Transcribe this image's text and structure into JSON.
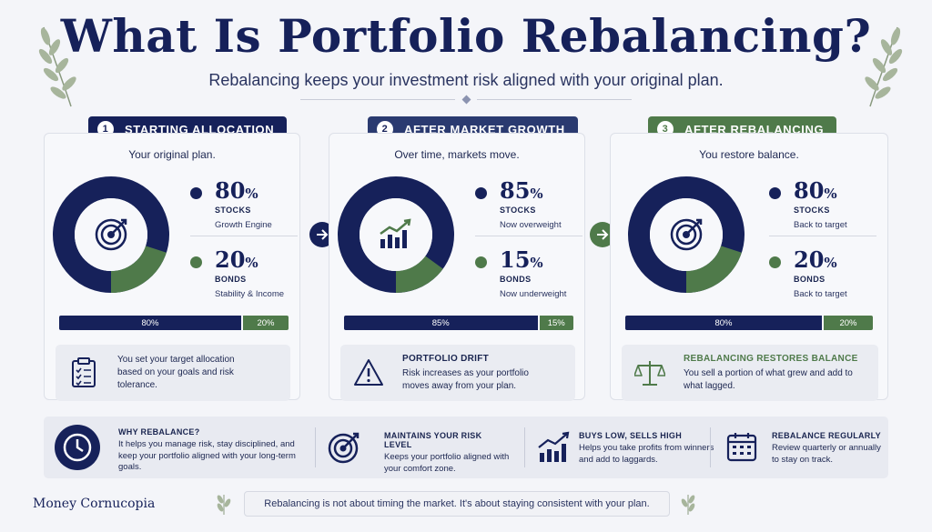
{
  "header": {
    "title": "What Is Portfolio Rebalancing?",
    "subtitle": "Rebalancing keeps your investment risk aligned with your original plan."
  },
  "panels": [
    {
      "num": "1",
      "tag": "STARTING ALLOCATION",
      "tag_color": "#16215a",
      "sub": "Your original plan.",
      "icon": "target-icon",
      "stocks": {
        "value": 80,
        "pct": "80",
        "label": "STOCKS",
        "desc": "Growth Engine"
      },
      "bonds": {
        "value": 20,
        "pct": "20",
        "label": "BONDS",
        "desc": "Stability & Income"
      },
      "bar": {
        "stocks": "80%",
        "bonds": "20%"
      },
      "note": {
        "head": "",
        "body": "You set your target allocation based on your goals and risk tolerance.",
        "icon": "clipboard-icon"
      }
    },
    {
      "num": "2",
      "tag": "AFTER MARKET GROWTH",
      "tag_color": "#2a3a70",
      "sub": "Over time, markets move.",
      "icon": "bar-chart-icon",
      "stocks": {
        "value": 85,
        "pct": "85",
        "label": "STOCKS",
        "desc": "Now overweight"
      },
      "bonds": {
        "value": 15,
        "pct": "15",
        "label": "BONDS",
        "desc": "Now underweight"
      },
      "bar": {
        "stocks": "85%",
        "bonds": "15%"
      },
      "note": {
        "head": "PORTFOLIO DRIFT",
        "body": "Risk increases as your portfolio moves away from your plan.",
        "icon": "warning-icon"
      }
    },
    {
      "num": "3",
      "tag": "AFTER REBALANCING",
      "tag_color": "#4f7a4a",
      "sub": "You restore balance.",
      "icon": "target-icon",
      "stocks": {
        "value": 80,
        "pct": "80",
        "label": "STOCKS",
        "desc": "Back to target"
      },
      "bonds": {
        "value": 20,
        "pct": "20",
        "label": "BONDS",
        "desc": "Back to target"
      },
      "bar": {
        "stocks": "80%",
        "bonds": "20%"
      },
      "note": {
        "head": "REBALANCING RESTORES BALANCE",
        "body": "You sell a portion of what grew and add to what lagged.",
        "icon": "scale-icon"
      }
    }
  ],
  "pct_sign": "%",
  "colors": {
    "navy": "#16215a",
    "green": "#4f7a4a"
  },
  "bottom": {
    "why": {
      "head": "WHY REBALANCE?",
      "text": "It helps you manage risk, stay disciplined, and keep your portfolio aligned with your long-term goals.",
      "icon": "clock-icon"
    },
    "items": [
      {
        "head": "MAINTAINS YOUR RISK LEVEL",
        "text": "Keeps your portfolio aligned with your comfort zone.",
        "icon": "target-icon"
      },
      {
        "head": "BUYS LOW, SELLS HIGH",
        "text": "Helps you take profits from winners and add to laggards.",
        "icon": "growth-chart-icon"
      },
      {
        "head": "REBALANCE REGULARLY",
        "text": "Review quarterly or annually to stay on track.",
        "icon": "calendar-icon"
      }
    ]
  },
  "footer": {
    "brand": "Money Cornucopia",
    "text": "Rebalancing is not about timing the market. It's about staying consistent with your plan."
  }
}
